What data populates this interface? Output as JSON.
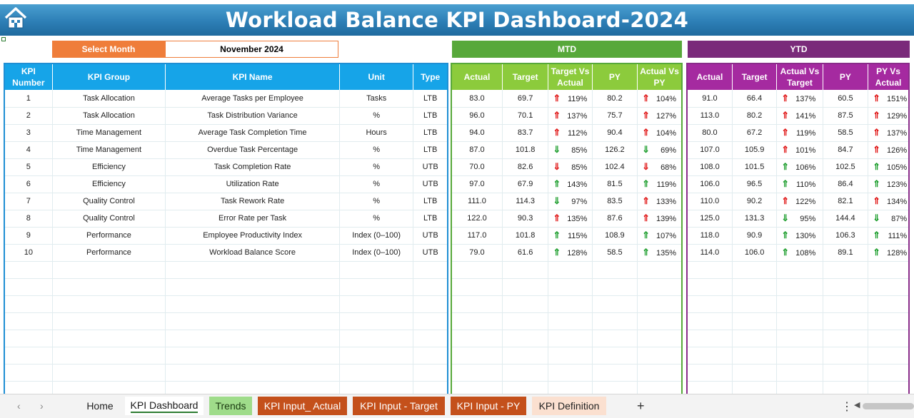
{
  "title": "Workload Balance KPI Dashboard-2024",
  "controls": {
    "select_label": "Select Month",
    "month": "November 2024",
    "mtd": "MTD",
    "ytd": "YTD"
  },
  "kpi_columns": [
    "KPI Number",
    "KPI Group",
    "KPI Name",
    "Unit",
    "Type"
  ],
  "mtd_columns": [
    "Actual",
    "Target",
    "Target Vs Actual",
    "PY",
    "Actual Vs PY"
  ],
  "ytd_columns": [
    "Actual",
    "Target",
    "Actual Vs Target",
    "PY",
    "PY Vs Actual"
  ],
  "rows": [
    {
      "num": "1",
      "group": "Task Allocation",
      "name": "Average Tasks per Employee",
      "unit": "Tasks",
      "type": "LTB",
      "mtd": {
        "actual": "83.0",
        "target": "69.7",
        "tva": "119%",
        "tva_arrow": "up-red",
        "py": "80.2",
        "avp": "104%",
        "avp_arrow": "up-red"
      },
      "ytd": {
        "actual": "91.0",
        "target": "66.4",
        "avt": "137%",
        "avt_arrow": "up-red",
        "py": "60.5",
        "pva": "151%",
        "pva_arrow": "up-red"
      }
    },
    {
      "num": "2",
      "group": "Task Allocation",
      "name": "Task Distribution Variance",
      "unit": "%",
      "type": "LTB",
      "mtd": {
        "actual": "96.0",
        "target": "70.1",
        "tva": "137%",
        "tva_arrow": "up-red",
        "py": "75.7",
        "avp": "127%",
        "avp_arrow": "up-red"
      },
      "ytd": {
        "actual": "113.0",
        "target": "80.2",
        "avt": "141%",
        "avt_arrow": "up-red",
        "py": "87.5",
        "pva": "129%",
        "pva_arrow": "up-red"
      }
    },
    {
      "num": "3",
      "group": "Time Management",
      "name": "Average Task Completion Time",
      "unit": "Hours",
      "type": "LTB",
      "mtd": {
        "actual": "94.0",
        "target": "83.7",
        "tva": "112%",
        "tva_arrow": "up-red",
        "py": "90.4",
        "avp": "104%",
        "avp_arrow": "up-red"
      },
      "ytd": {
        "actual": "80.0",
        "target": "67.2",
        "avt": "119%",
        "avt_arrow": "up-red",
        "py": "58.5",
        "pva": "137%",
        "pva_arrow": "up-red"
      }
    },
    {
      "num": "4",
      "group": "Time Management",
      "name": "Overdue Task Percentage",
      "unit": "%",
      "type": "LTB",
      "mtd": {
        "actual": "87.0",
        "target": "101.8",
        "tva": "85%",
        "tva_arrow": "dn-green",
        "py": "126.2",
        "avp": "69%",
        "avp_arrow": "dn-green"
      },
      "ytd": {
        "actual": "107.0",
        "target": "105.9",
        "avt": "101%",
        "avt_arrow": "up-red",
        "py": "84.7",
        "pva": "126%",
        "pva_arrow": "up-red"
      }
    },
    {
      "num": "5",
      "group": "Efficiency",
      "name": "Task Completion Rate",
      "unit": "%",
      "type": "UTB",
      "mtd": {
        "actual": "70.0",
        "target": "82.6",
        "tva": "85%",
        "tva_arrow": "dn-red",
        "py": "102.4",
        "avp": "68%",
        "avp_arrow": "dn-red"
      },
      "ytd": {
        "actual": "108.0",
        "target": "101.5",
        "avt": "106%",
        "avt_arrow": "up-green",
        "py": "102.5",
        "pva": "105%",
        "pva_arrow": "up-green"
      }
    },
    {
      "num": "6",
      "group": "Efficiency",
      "name": "Utilization Rate",
      "unit": "%",
      "type": "UTB",
      "mtd": {
        "actual": "97.0",
        "target": "67.9",
        "tva": "143%",
        "tva_arrow": "up-green",
        "py": "81.5",
        "avp": "119%",
        "avp_arrow": "up-green"
      },
      "ytd": {
        "actual": "106.0",
        "target": "96.5",
        "avt": "110%",
        "avt_arrow": "up-green",
        "py": "86.4",
        "pva": "123%",
        "pva_arrow": "up-green"
      }
    },
    {
      "num": "7",
      "group": "Quality Control",
      "name": "Task Rework Rate",
      "unit": "%",
      "type": "LTB",
      "mtd": {
        "actual": "111.0",
        "target": "114.3",
        "tva": "97%",
        "tva_arrow": "dn-green",
        "py": "83.5",
        "avp": "133%",
        "avp_arrow": "up-red"
      },
      "ytd": {
        "actual": "110.0",
        "target": "90.2",
        "avt": "122%",
        "avt_arrow": "up-red",
        "py": "82.1",
        "pva": "134%",
        "pva_arrow": "up-red"
      }
    },
    {
      "num": "8",
      "group": "Quality Control",
      "name": "Error Rate per Task",
      "unit": "%",
      "type": "LTB",
      "mtd": {
        "actual": "122.0",
        "target": "90.3",
        "tva": "135%",
        "tva_arrow": "up-red",
        "py": "87.6",
        "avp": "139%",
        "avp_arrow": "up-red"
      },
      "ytd": {
        "actual": "125.0",
        "target": "131.3",
        "avt": "95%",
        "avt_arrow": "dn-green",
        "py": "144.4",
        "pva": "87%",
        "pva_arrow": "dn-green"
      }
    },
    {
      "num": "9",
      "group": "Performance",
      "name": "Employee Productivity Index",
      "unit": "Index (0–100)",
      "type": "UTB",
      "mtd": {
        "actual": "117.0",
        "target": "101.8",
        "tva": "115%",
        "tva_arrow": "up-green",
        "py": "108.9",
        "avp": "107%",
        "avp_arrow": "up-green"
      },
      "ytd": {
        "actual": "118.0",
        "target": "90.9",
        "avt": "130%",
        "avt_arrow": "up-green",
        "py": "106.3",
        "pva": "111%",
        "pva_arrow": "up-green"
      }
    },
    {
      "num": "10",
      "group": "Performance",
      "name": "Workload Balance Score",
      "unit": "Index (0–100)",
      "type": "UTB",
      "mtd": {
        "actual": "79.0",
        "target": "61.6",
        "tva": "128%",
        "tva_arrow": "up-green",
        "py": "58.5",
        "avp": "135%",
        "avp_arrow": "up-green"
      },
      "ytd": {
        "actual": "114.0",
        "target": "106.0",
        "avt": "108%",
        "avt_arrow": "up-green",
        "py": "89.1",
        "pva": "128%",
        "pva_arrow": "up-green"
      }
    }
  ],
  "empty_rows": 8,
  "arrow_glyphs": {
    "up": "⇑",
    "down": "⇓"
  },
  "colors": {
    "up-red": "#e01818",
    "up-green": "#1e9e2e",
    "dn-red": "#e01818",
    "dn-green": "#1e9e2e"
  },
  "tabs": [
    {
      "label": "Home",
      "style": "plain"
    },
    {
      "label": "KPI Dashboard",
      "style": "active"
    },
    {
      "label": "Trends",
      "style": "green"
    },
    {
      "label": "KPI Input_ Actual",
      "style": "orange"
    },
    {
      "label": "KPI Input - Target",
      "style": "orange"
    },
    {
      "label": "KPI Input - PY",
      "style": "orange"
    },
    {
      "label": "KPI Definition",
      "style": "peach"
    }
  ],
  "tabbar": {
    "add_label": "+",
    "more_label": "⋮"
  }
}
